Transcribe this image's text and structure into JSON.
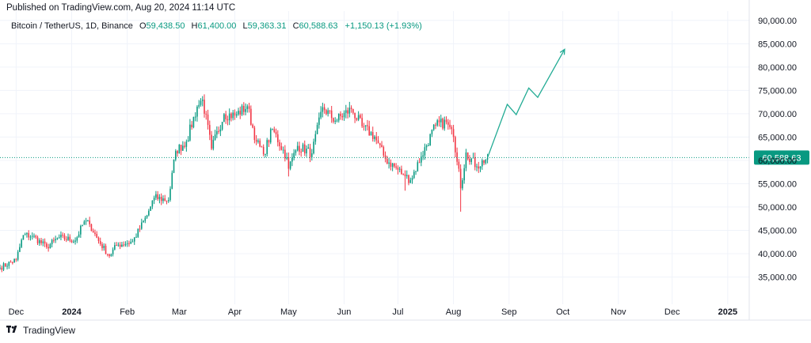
{
  "header": {
    "published": "Published on TradingView.com, Aug 20, 2024 11:14 UTC"
  },
  "legend": {
    "symbol": "Bitcoin / TetherUS, 1D, Binance",
    "open_label": "O",
    "open": "59,438.50",
    "high_label": "H",
    "high": "61,400.00",
    "low_label": "L",
    "low": "59,363.31",
    "close_label": "C",
    "close": "60,588.63",
    "change": "+1,150.13 (+1.93%)"
  },
  "footer": {
    "brand": "TradingView"
  },
  "colors": {
    "up": "#089981",
    "down": "#f23645",
    "projection": "#22ab94",
    "grid": "#f0f3fa",
    "price_line": "#089981"
  },
  "chart_data": {
    "type": "candlestick",
    "symbol": "BTCUSDT",
    "timeframe": "1D",
    "y_range": [
      30000,
      92000
    ],
    "y_ticks": [
      35000,
      40000,
      45000,
      50000,
      55000,
      60000,
      65000,
      70000,
      75000,
      80000,
      85000,
      90000
    ],
    "y_tick_labels": [
      "35,000.00",
      "40,000.00",
      "45,000.00",
      "50,000.00",
      "55,000.00",
      "60,000.00",
      "65,000.00",
      "70,000.00",
      "75,000.00",
      "80,000.00",
      "85,000.00",
      "90,000.00"
    ],
    "x_range": [
      "2023-11-22",
      "2025-01-13"
    ],
    "x_ticks": [
      {
        "date": "2023-12-01",
        "label": "Dec",
        "bold": false
      },
      {
        "date": "2024-01-01",
        "label": "2024",
        "bold": true
      },
      {
        "date": "2024-02-01",
        "label": "Feb",
        "bold": false
      },
      {
        "date": "2024-03-01",
        "label": "Mar",
        "bold": false
      },
      {
        "date": "2024-04-01",
        "label": "Apr",
        "bold": false
      },
      {
        "date": "2024-05-01",
        "label": "May",
        "bold": false
      },
      {
        "date": "2024-06-01",
        "label": "Jun",
        "bold": false
      },
      {
        "date": "2024-07-01",
        "label": "Jul",
        "bold": false
      },
      {
        "date": "2024-08-01",
        "label": "Aug",
        "bold": false
      },
      {
        "date": "2024-09-01",
        "label": "Sep",
        "bold": false
      },
      {
        "date": "2024-10-01",
        "label": "Oct",
        "bold": false
      },
      {
        "date": "2024-11-01",
        "label": "Nov",
        "bold": false
      },
      {
        "date": "2024-12-01",
        "label": "Dec",
        "bold": false
      },
      {
        "date": "2025-01-01",
        "label": "2025",
        "bold": true
      }
    ],
    "last_price": 60588.63,
    "last_price_label": "60,588.63",
    "close_anchors": [
      [
        "2023-11-22",
        37000
      ],
      [
        "2023-12-01",
        38700
      ],
      [
        "2023-12-05",
        44000
      ],
      [
        "2023-12-10",
        43800
      ],
      [
        "2023-12-18",
        41400
      ],
      [
        "2023-12-25",
        43500
      ],
      [
        "2024-01-03",
        42800
      ],
      [
        "2024-01-08",
        46900
      ],
      [
        "2024-01-11",
        46300
      ],
      [
        "2024-01-16",
        42700
      ],
      [
        "2024-01-22",
        39500
      ],
      [
        "2024-01-26",
        41800
      ],
      [
        "2024-02-04",
        42600
      ],
      [
        "2024-02-12",
        48200
      ],
      [
        "2024-02-16",
        52000
      ],
      [
        "2024-02-24",
        51500
      ],
      [
        "2024-02-28",
        62000
      ],
      [
        "2024-03-05",
        64000
      ],
      [
        "2024-03-11",
        71500
      ],
      [
        "2024-03-14",
        73000
      ],
      [
        "2024-03-19",
        62500
      ],
      [
        "2024-03-26",
        69900
      ],
      [
        "2024-04-01",
        69600
      ],
      [
        "2024-04-08",
        71600
      ],
      [
        "2024-04-13",
        64000
      ],
      [
        "2024-04-17",
        61300
      ],
      [
        "2024-04-22",
        66700
      ],
      [
        "2024-04-30",
        60600
      ],
      [
        "2024-05-01",
        58200
      ],
      [
        "2024-05-06",
        63100
      ],
      [
        "2024-05-14",
        61500
      ],
      [
        "2024-05-20",
        71400
      ],
      [
        "2024-05-27",
        68500
      ],
      [
        "2024-06-05",
        71000
      ],
      [
        "2024-06-11",
        67300
      ],
      [
        "2024-06-18",
        65100
      ],
      [
        "2024-06-24",
        60300
      ],
      [
        "2024-07-04",
        57000
      ],
      [
        "2024-07-05",
        56600
      ],
      [
        "2024-07-08",
        55800
      ],
      [
        "2024-07-14",
        60800
      ],
      [
        "2024-07-22",
        67500
      ],
      [
        "2024-07-28",
        68200
      ],
      [
        "2024-08-01",
        65000
      ],
      [
        "2024-08-04",
        58200
      ],
      [
        "2024-08-05",
        54000
      ],
      [
        "2024-08-08",
        61700
      ],
      [
        "2024-08-14",
        58700
      ],
      [
        "2024-08-20",
        60588
      ]
    ],
    "wick_events": [
      {
        "date": "2024-08-05",
        "low": 49000
      },
      {
        "date": "2024-03-14",
        "high": 73777
      },
      {
        "date": "2024-07-05",
        "low": 53500
      },
      {
        "date": "2024-05-01",
        "low": 56550
      }
    ],
    "projection": {
      "points": [
        [
          "2024-08-20",
          60588
        ],
        [
          "2024-08-31",
          72000
        ],
        [
          "2024-09-05",
          69800
        ],
        [
          "2024-09-12",
          75500
        ],
        [
          "2024-09-17",
          73500
        ],
        [
          "2024-10-02",
          83800
        ]
      ]
    }
  }
}
